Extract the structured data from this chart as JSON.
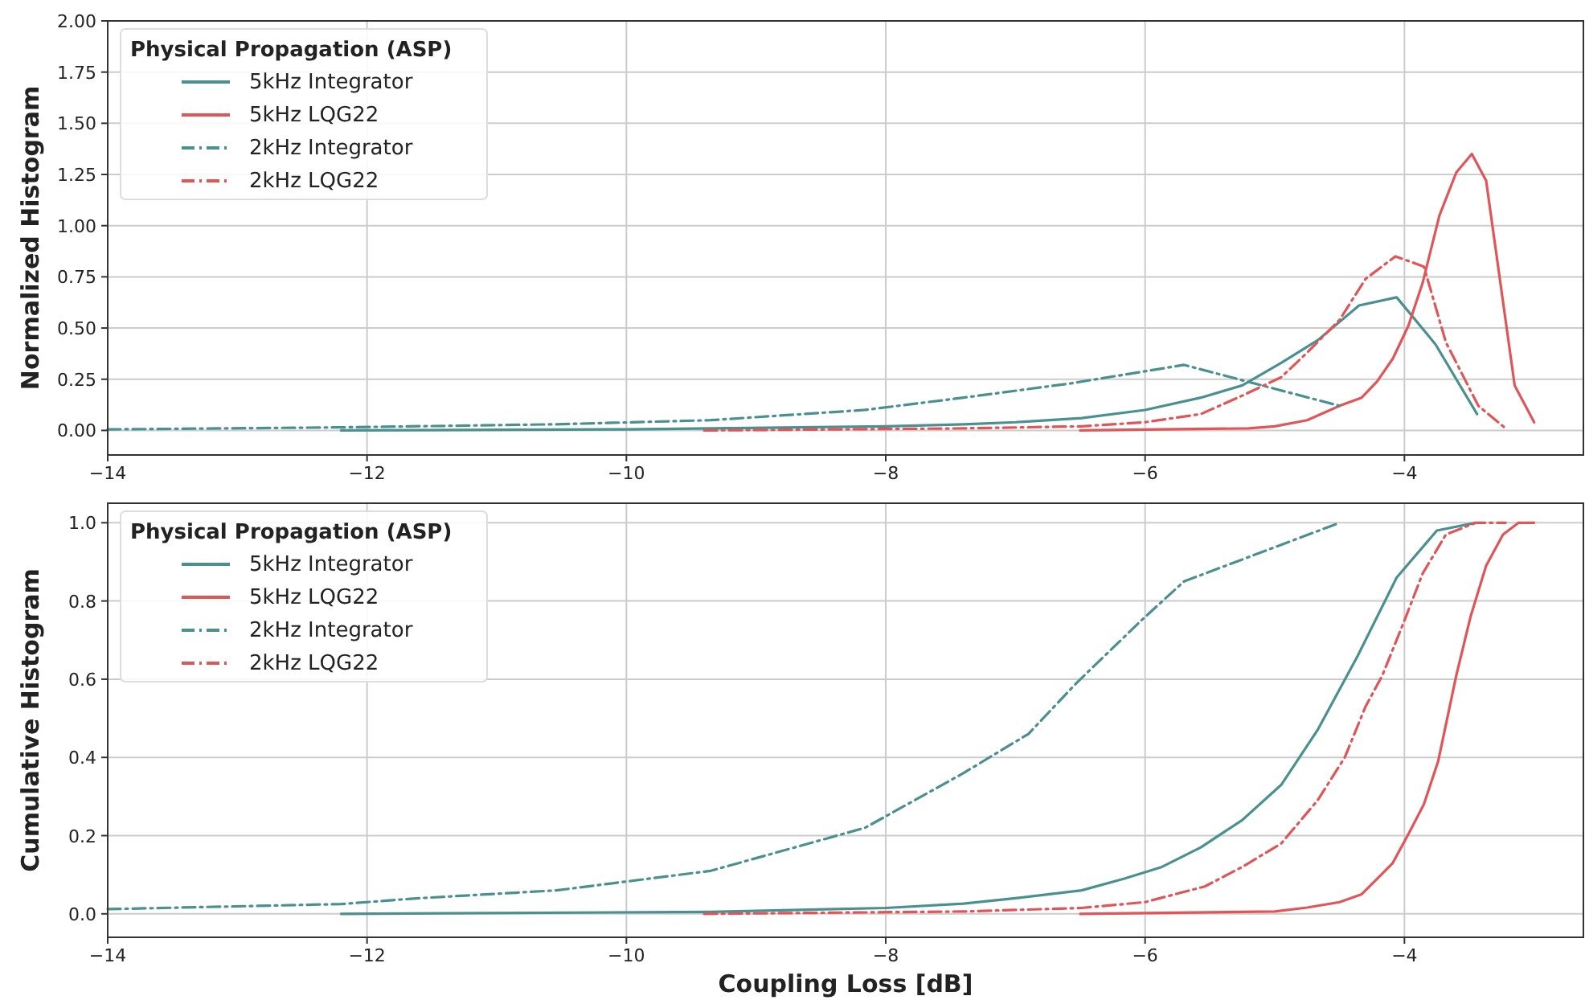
{
  "chart_data": [
    {
      "type": "line",
      "ylabel": "Normalized Histogram",
      "legend_title": "Physical Propagation (ASP)",
      "legend": "top left",
      "grid": true,
      "xlim": [
        -14,
        -2.62
      ],
      "xticks": [
        {
          "value": -14,
          "label": "−14"
        },
        {
          "value": -12,
          "label": "−12"
        },
        {
          "value": -10,
          "label": "−10"
        },
        {
          "value": -8,
          "label": "−8"
        },
        {
          "value": -6,
          "label": "−6"
        },
        {
          "value": -4,
          "label": "−4"
        }
      ],
      "ylim": [
        -0.12,
        2.0
      ],
      "yticks": [
        {
          "value": 0,
          "label": "0.00"
        },
        {
          "value": 0.25,
          "label": "0.25"
        },
        {
          "value": 0.5,
          "label": "0.50"
        },
        {
          "value": 0.75,
          "label": "0.75"
        },
        {
          "value": 1,
          "label": "1.00"
        },
        {
          "value": 1.25,
          "label": "1.25"
        },
        {
          "value": 1.5,
          "label": "1.50"
        },
        {
          "value": 1.75,
          "label": "1.75"
        },
        {
          "value": 2,
          "label": "2.00"
        }
      ],
      "series": [
        {
          "name": "5kHz Integrator",
          "color": "#4a9090",
          "line_style": "solid",
          "x": [
            -12.2,
            -10,
            -8,
            -7.4,
            -7.0,
            -6.49,
            -6.0,
            -5.57,
            -5.25,
            -4.95,
            -4.67,
            -4.35,
            -4.06,
            -3.76,
            -3.44
          ],
          "values": [
            0,
            0.005,
            0.02,
            0.03,
            0.04,
            0.06,
            0.1,
            0.16,
            0.22,
            0.33,
            0.44,
            0.61,
            0.65,
            0.42,
            0.08
          ]
        },
        {
          "name": "5kHz LQG22",
          "color": "#e05558",
          "line_style": "solid",
          "x": [
            -6.5,
            -5.2,
            -5.0,
            -4.75,
            -4.5,
            -4.33,
            -4.21,
            -4.09,
            -3.97,
            -3.86,
            -3.73,
            -3.6,
            -3.48,
            -3.37,
            -3.15,
            -3.0
          ],
          "values": [
            0,
            0.01,
            0.02,
            0.05,
            0.12,
            0.16,
            0.24,
            0.35,
            0.51,
            0.72,
            1.05,
            1.26,
            1.35,
            1.22,
            0.22,
            0.04
          ]
        },
        {
          "name": "2kHz Integrator",
          "color": "#4a9090",
          "line_style": "dashdot",
          "x": [
            -14,
            -12.2,
            -10.54,
            -9.35,
            -8.16,
            -7.4,
            -6.57,
            -5.7,
            -4.5
          ],
          "values": [
            0.005,
            0.015,
            0.03,
            0.05,
            0.1,
            0.16,
            0.23,
            0.32,
            0.12
          ]
        },
        {
          "name": "2kHz LQG22",
          "color": "#e05558",
          "line_style": "dashdot",
          "x": [
            -9.4,
            -7.4,
            -6.49,
            -6.0,
            -5.57,
            -5.25,
            -4.95,
            -4.75,
            -4.5,
            -4.3,
            -4.07,
            -3.85,
            -3.68,
            -3.43,
            -3.22
          ],
          "values": [
            0,
            0.01,
            0.02,
            0.04,
            0.08,
            0.17,
            0.26,
            0.38,
            0.54,
            0.74,
            0.85,
            0.8,
            0.43,
            0.12,
            0.01
          ]
        }
      ]
    },
    {
      "type": "line",
      "xlabel": "Coupling Loss [dB]",
      "ylabel": "Cumulative Histogram",
      "legend_title": "Physical Propagation (ASP)",
      "legend": "top left",
      "grid": true,
      "xlim": [
        -14,
        -2.62
      ],
      "xticks": [
        {
          "value": -14,
          "label": "−14"
        },
        {
          "value": -12,
          "label": "−12"
        },
        {
          "value": -10,
          "label": "−10"
        },
        {
          "value": -8,
          "label": "−8"
        },
        {
          "value": -6,
          "label": "−6"
        },
        {
          "value": -4,
          "label": "−4"
        }
      ],
      "ylim": [
        -0.06,
        1.05
      ],
      "yticks": [
        {
          "value": 0,
          "label": "0.0"
        },
        {
          "value": 0.2,
          "label": "0.2"
        },
        {
          "value": 0.4,
          "label": "0.4"
        },
        {
          "value": 0.6,
          "label": "0.6"
        },
        {
          "value": 0.8,
          "label": "0.8"
        },
        {
          "value": 1,
          "label": "1.0"
        }
      ],
      "series": [
        {
          "name": "5kHz Integrator",
          "color": "#4a9090",
          "line_style": "solid",
          "x": [
            -12.2,
            -9.35,
            -8,
            -7.4,
            -7.0,
            -6.49,
            -6.16,
            -5.87,
            -5.57,
            -5.25,
            -4.95,
            -4.67,
            -4.36,
            -4.06,
            -3.75,
            -3.45
          ],
          "values": [
            0,
            0.005,
            0.015,
            0.026,
            0.04,
            0.06,
            0.09,
            0.12,
            0.17,
            0.24,
            0.33,
            0.47,
            0.66,
            0.86,
            0.98,
            1.0
          ]
        },
        {
          "name": "5kHz LQG22",
          "color": "#e05558",
          "line_style": "solid",
          "x": [
            -6.5,
            -5.0,
            -4.75,
            -4.5,
            -4.33,
            -4.21,
            -4.09,
            -3.96,
            -3.85,
            -3.74,
            -3.6,
            -3.49,
            -3.37,
            -3.24,
            -3.12,
            -3.0
          ],
          "values": [
            0,
            0.006,
            0.016,
            0.03,
            0.05,
            0.09,
            0.13,
            0.21,
            0.28,
            0.39,
            0.61,
            0.76,
            0.89,
            0.97,
            1.0,
            1.0
          ]
        },
        {
          "name": "2kHz Integrator",
          "color": "#4a9090",
          "line_style": "dashdot",
          "x": [
            -14,
            -12.2,
            -11.6,
            -10.54,
            -9.35,
            -8.16,
            -7.4,
            -6.9,
            -6.53,
            -6.03,
            -5.7,
            -4.5
          ],
          "values": [
            0.012,
            0.025,
            0.04,
            0.06,
            0.11,
            0.22,
            0.36,
            0.46,
            0.59,
            0.75,
            0.85,
            1.0
          ]
        },
        {
          "name": "2kHz LQG22",
          "color": "#e05558",
          "line_style": "dashdot",
          "x": [
            -9.4,
            -7.4,
            -6.49,
            -6.0,
            -5.54,
            -5.25,
            -4.95,
            -4.67,
            -4.46,
            -4.3,
            -4.17,
            -4.0,
            -3.86,
            -3.68,
            -3.45,
            -3.22
          ],
          "values": [
            0,
            0.006,
            0.015,
            0.03,
            0.07,
            0.12,
            0.18,
            0.29,
            0.4,
            0.53,
            0.61,
            0.75,
            0.87,
            0.97,
            1.0,
            1.0
          ]
        }
      ]
    }
  ]
}
